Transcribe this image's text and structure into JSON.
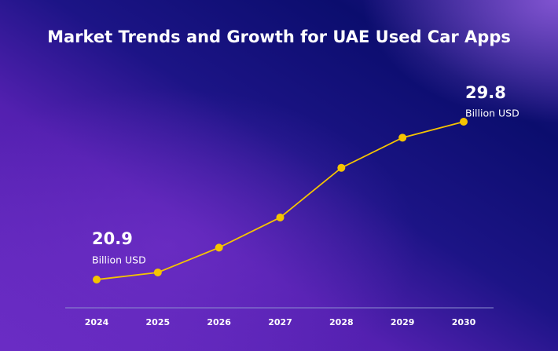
{
  "chart_data": {
    "type": "line",
    "title": "Market Trends and Growth  for UAE Used Car Apps",
    "categories": [
      "2024",
      "2025",
      "2026",
      "2027",
      "2028",
      "2029",
      "2030"
    ],
    "values": [
      20.9,
      21.3,
      22.7,
      24.4,
      27.2,
      28.9,
      29.8
    ],
    "unit": "Billion USD",
    "color": "#f5c400"
  }
}
